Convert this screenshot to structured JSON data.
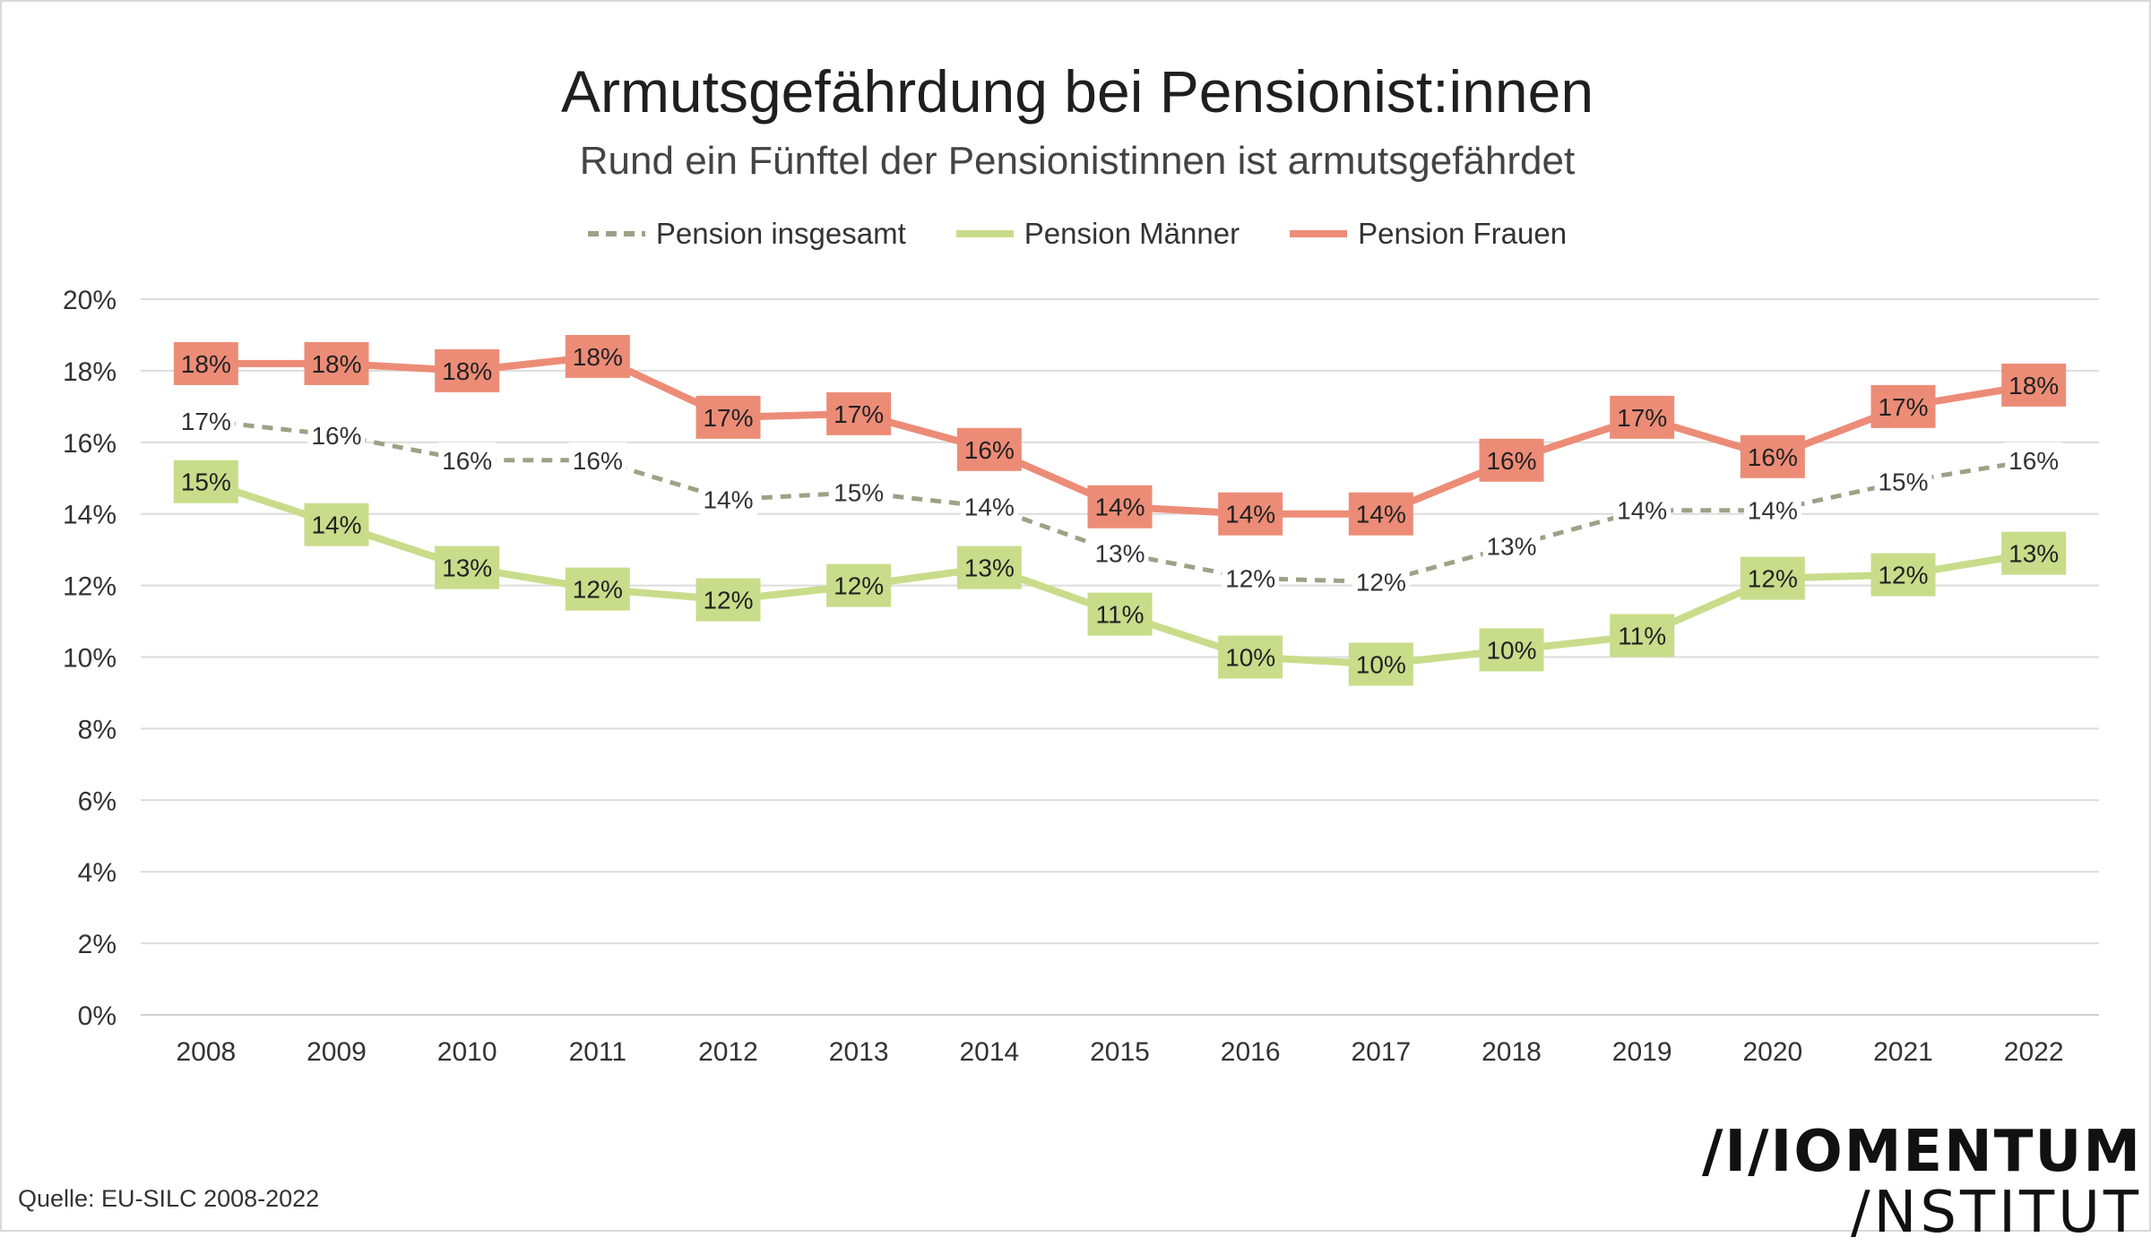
{
  "title": "Armutsgefährdung bei Pensionist:innen",
  "subtitle": "Rund ein Fünftel der Pensionistinnen ist armutsgefährdet",
  "source": "Quelle: EU-SILC 2008-2022",
  "logo": {
    "line1": "/I/IOMENTUM",
    "line2": "/NSTITUT"
  },
  "chart_data": {
    "type": "line",
    "categories": [
      "2008",
      "2009",
      "2010",
      "2011",
      "2012",
      "2013",
      "2014",
      "2015",
      "2016",
      "2017",
      "2018",
      "2019",
      "2020",
      "2021",
      "2022"
    ],
    "yticks": [
      "0%",
      "2%",
      "4%",
      "6%",
      "8%",
      "10%",
      "12%",
      "14%",
      "16%",
      "18%",
      "20%"
    ],
    "ylim": [
      0,
      20
    ],
    "grid": true,
    "legend_position": "top",
    "series": [
      {
        "name": "Pension insgesamt",
        "style": "dashed",
        "color": "#9aa386",
        "values": [
          16.6,
          16.2,
          15.5,
          15.5,
          14.4,
          14.6,
          14.2,
          12.9,
          12.2,
          12.1,
          13.1,
          14.1,
          14.1,
          14.9,
          15.5
        ],
        "labels": [
          "17%",
          "16%",
          "16%",
          "16%",
          "14%",
          "15%",
          "14%",
          "13%",
          "12%",
          "12%",
          "13%",
          "14%",
          "14%",
          "15%",
          "16%"
        ]
      },
      {
        "name": "Pension Männer",
        "style": "solid",
        "color": "#c9dc8a",
        "values": [
          14.9,
          13.7,
          12.5,
          11.9,
          11.6,
          12.0,
          12.5,
          11.2,
          10.0,
          9.8,
          10.2,
          10.6,
          12.2,
          12.3,
          12.9
        ],
        "labels": [
          "15%",
          "14%",
          "13%",
          "12%",
          "12%",
          "12%",
          "13%",
          "11%",
          "10%",
          "10%",
          "10%",
          "11%",
          "12%",
          "12%",
          "13%"
        ]
      },
      {
        "name": "Pension Frauen",
        "style": "solid",
        "color": "#ec8c77",
        "values": [
          18.2,
          18.2,
          18.0,
          18.4,
          16.7,
          16.8,
          15.8,
          14.2,
          14.0,
          14.0,
          15.5,
          16.7,
          15.6,
          17.0,
          17.6
        ],
        "labels": [
          "18%",
          "18%",
          "18%",
          "18%",
          "17%",
          "17%",
          "16%",
          "14%",
          "14%",
          "14%",
          "16%",
          "17%",
          "16%",
          "17%",
          "18%"
        ]
      }
    ]
  }
}
